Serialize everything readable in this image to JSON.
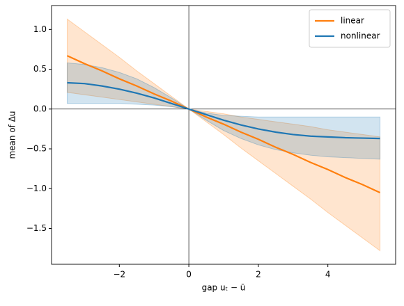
{
  "chart_data": {
    "type": "line",
    "x_label": "gap uₜ − ū",
    "y_label": "mean of Δu",
    "x": [
      -3.5,
      -3,
      -2.5,
      -2,
      -1.5,
      -1,
      -0.5,
      0,
      0.5,
      1,
      1.5,
      2,
      2.5,
      3,
      3.5,
      4,
      4.5,
      5,
      5.5
    ],
    "series": [
      {
        "name": "linear",
        "color": "#ff7f0e",
        "values": [
          0.67,
          0.57,
          0.48,
          0.38,
          0.29,
          0.19,
          0.1,
          0,
          -0.1,
          -0.19,
          -0.29,
          -0.38,
          -0.48,
          -0.57,
          -0.67,
          -0.76,
          -0.86,
          -0.95,
          -1.05
        ],
        "upper": [
          1.13,
          0.97,
          0.81,
          0.65,
          0.48,
          0.32,
          0.16,
          0,
          -0.03,
          -0.06,
          -0.1,
          -0.13,
          -0.16,
          -0.19,
          -0.22,
          -0.26,
          -0.29,
          -0.32,
          -0.35
        ],
        "lower": [
          0.21,
          0.18,
          0.15,
          0.12,
          0.09,
          0.06,
          0.03,
          0,
          -0.16,
          -0.32,
          -0.49,
          -0.65,
          -0.81,
          -0.97,
          -1.13,
          -1.3,
          -1.46,
          -1.62,
          -1.78
        ]
      },
      {
        "name": "nonlinear",
        "color": "#1f77b4",
        "values": [
          0.33,
          0.32,
          0.29,
          0.25,
          0.2,
          0.14,
          0.07,
          0,
          -0.07,
          -0.14,
          -0.2,
          -0.25,
          -0.29,
          -0.32,
          -0.34,
          -0.35,
          -0.36,
          -0.365,
          -0.37
        ],
        "upper": [
          0.58,
          0.56,
          0.52,
          0.46,
          0.38,
          0.27,
          0.14,
          0,
          -0.05,
          -0.08,
          -0.09,
          -0.1,
          -0.1,
          -0.1,
          -0.1,
          -0.1,
          -0.1,
          -0.1,
          -0.1
        ],
        "lower": [
          0.07,
          0.07,
          0.07,
          0.07,
          0.06,
          0.05,
          0.03,
          0,
          -0.14,
          -0.27,
          -0.37,
          -0.45,
          -0.51,
          -0.55,
          -0.58,
          -0.6,
          -0.61,
          -0.62,
          -0.63
        ]
      }
    ],
    "xlim": [
      -3.95,
      5.95
    ],
    "ylim": [
      -1.95,
      1.3
    ],
    "xticks": [
      {
        "value": -2,
        "label": "−2"
      },
      0,
      2,
      4
    ],
    "yticks": [
      {
        "value": 1,
        "label": "1.0"
      },
      0.5,
      {
        "value": 0,
        "label": "0.0"
      },
      {
        "value": -0.5,
        "label": "−0.5"
      },
      {
        "value": -1,
        "label": "−1.0"
      },
      {
        "value": -1.5,
        "label": "−1.5"
      }
    ],
    "axhline": 0,
    "axvline": 0,
    "legend": "upper right"
  }
}
